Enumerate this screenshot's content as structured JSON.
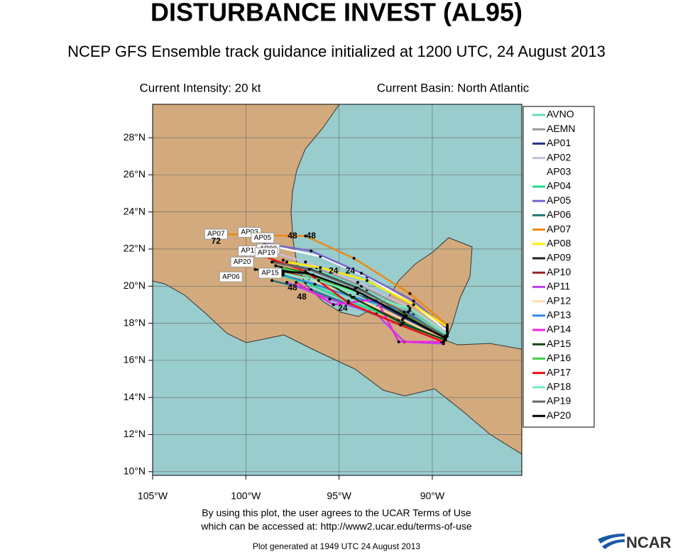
{
  "title": "DISTURBANCE INVEST (AL95)",
  "subtitle": "NCEP GFS Ensemble track guidance initialized at 1200 UTC, 24 August 2013",
  "intensity": "Current Intensity: 20 kt",
  "basin": "Current Basin: North Atlantic",
  "terms_line1": "By using this plot, the user agrees to the UCAR Terms of Use",
  "terms_line2": "which can be accessed at: http://www2.ucar.edu/terms-of-use",
  "generated": "Plot generated at 1949 UTC   24 August 2013",
  "logo": "NCAR",
  "chart_data": {
    "type": "track",
    "xlim": [
      -105,
      -85.2
    ],
    "ylim": [
      9.8,
      29.8
    ],
    "grid": true,
    "xticks": [
      {
        "value": -105,
        "label": "105°W"
      },
      {
        "value": -100,
        "label": "100°W"
      },
      {
        "value": -95,
        "label": "95°W"
      },
      {
        "value": -90,
        "label": "90°W"
      }
    ],
    "yticks": [
      {
        "value": 10,
        "label": "10°N"
      },
      {
        "value": 12,
        "label": "12°N"
      },
      {
        "value": 14,
        "label": "14°N"
      },
      {
        "value": 16,
        "label": "16°N"
      },
      {
        "value": 18,
        "label": "18°N"
      },
      {
        "value": 20,
        "label": "20°N"
      },
      {
        "value": 22,
        "label": "22°N"
      },
      {
        "value": 24,
        "label": "24°N"
      },
      {
        "value": 26,
        "label": "26°N"
      },
      {
        "value": 28,
        "label": "28°N"
      }
    ],
    "series": [
      {
        "name": "AVNO",
        "color": "#66ddbb",
        "x": [
          -89.2,
          -91,
          -93.5,
          -96,
          -98
        ],
        "values": [
          17.3,
          18.5,
          19.8,
          20.8,
          21.2
        ]
      },
      {
        "name": "AEMN",
        "color": "#999999",
        "x": [
          -89.2,
          -91.2,
          -93.8,
          -96.2,
          -98
        ],
        "values": [
          17.4,
          18.7,
          20,
          21,
          21.4
        ]
      },
      {
        "name": "AP01",
        "color": "#223388",
        "x": [
          -89.3,
          -91.5,
          -94,
          -96.5,
          -98.3
        ],
        "values": [
          17.2,
          18.3,
          19.6,
          20.6,
          20.9
        ]
      },
      {
        "name": "AP02",
        "color": "#ccbbdd",
        "x": [
          -89.2,
          -91.3,
          -94,
          -96.8,
          -98.5
        ],
        "values": [
          17.5,
          18.9,
          20.2,
          21.3,
          21.8
        ]
      },
      {
        "name": "AP03",
        "color": "#ffffff",
        "x": [
          -89.2,
          -91,
          -93.5,
          -96,
          -98.8
        ],
        "values": [
          17.6,
          19,
          20.5,
          21.6,
          22.2
        ]
      },
      {
        "name": "AP04",
        "color": "#22dd88",
        "x": [
          -89.3,
          -91.8,
          -94.5,
          -96.8,
          -98.2
        ],
        "values": [
          17.1,
          18.2,
          19.2,
          20.2,
          20.6
        ]
      },
      {
        "name": "AP05",
        "color": "#7766cc",
        "x": [
          -89.2,
          -91,
          -93.8,
          -96.5,
          -99
        ],
        "values": [
          17.7,
          19.2,
          20.7,
          21.9,
          22.3
        ]
      },
      {
        "name": "AP06",
        "color": "#227777",
        "x": [
          -89.4,
          -91.6,
          -94.2,
          -96.5,
          -98.6
        ],
        "values": [
          17,
          17.9,
          18.9,
          19.8,
          20.3
        ]
      },
      {
        "name": "AP07",
        "color": "#ee8811",
        "x": [
          -89.2,
          -91.2,
          -94.2,
          -96.8,
          -101.5
        ],
        "values": [
          17.9,
          19.6,
          21.5,
          22.7,
          22.8
        ]
      },
      {
        "name": "AP08",
        "color": "#ffee00",
        "x": [
          -89.2,
          -91,
          -93.5,
          -96,
          -97.8
        ],
        "values": [
          17.8,
          19,
          20.3,
          21,
          21.3
        ]
      },
      {
        "name": "AP09",
        "color": "#222222",
        "x": [
          -89.3,
          -91.4,
          -94,
          -96.5,
          -98.5
        ],
        "values": [
          17.3,
          18.5,
          19.9,
          20.9,
          21.3
        ]
      },
      {
        "name": "AP10",
        "color": "#992222",
        "x": [
          -89.3,
          -91.5,
          -94,
          -96.2,
          -98
        ],
        "values": [
          17.2,
          18.1,
          19.3,
          20.3,
          20.8
        ]
      },
      {
        "name": "AP11",
        "color": "#bb44ee",
        "x": [
          -89.4,
          -91.5,
          -93,
          -95.5,
          -97.8
        ],
        "values": [
          16.9,
          17,
          18.5,
          19.3,
          20.2
        ]
      },
      {
        "name": "AP12",
        "color": "#ffddaa",
        "x": [
          -89.3,
          -91.6,
          -94.4,
          -96.6,
          -98.8
        ],
        "values": [
          17.1,
          18.2,
          19.5,
          20.4,
          20.8
        ]
      },
      {
        "name": "AP13",
        "color": "#3388dd",
        "x": [
          -89.3,
          -91.3,
          -94.2,
          -96.3,
          -98
        ],
        "values": [
          17.2,
          18.6,
          19.4,
          20.1,
          20.6
        ]
      },
      {
        "name": "AP14",
        "color": "#ee22dd",
        "x": [
          -89.5,
          -91.8,
          -93,
          -95.3,
          -97.3
        ],
        "values": [
          17,
          17,
          19.3,
          19,
          20.2
        ]
      },
      {
        "name": "AP15",
        "color": "#114411",
        "x": [
          -89.3,
          -91.6,
          -94.3,
          -96.4,
          -98.4
        ],
        "values": [
          17.1,
          18,
          19.4,
          20.6,
          21.1
        ]
      },
      {
        "name": "AP16",
        "color": "#44cc44",
        "x": [
          -89.3,
          -91.4,
          -94.1,
          -96.3,
          -98.1
        ],
        "values": [
          17.3,
          18.4,
          19.7,
          20.5,
          21
        ]
      },
      {
        "name": "AP17",
        "color": "#ee1111",
        "x": [
          -89.4,
          -91.7,
          -94.5,
          -96.8,
          -99
        ],
        "values": [
          17,
          17.9,
          19.1,
          20.8,
          21.6
        ]
      },
      {
        "name": "AP18",
        "color": "#77eebb",
        "x": [
          -89.2,
          -91.2,
          -94,
          -96.1,
          -98
        ],
        "values": [
          17.4,
          18.8,
          19.6,
          20.3,
          20.7
        ]
      },
      {
        "name": "AP19",
        "color": "#666666",
        "x": [
          -89.3,
          -91.5,
          -94.1,
          -96.6,
          -98.6
        ],
        "values": [
          17.3,
          18.6,
          19.9,
          20.9,
          21.3
        ]
      },
      {
        "name": "AP20",
        "color": "#000000",
        "x": [
          -89.3,
          -91.5,
          -94.2,
          -96.7,
          -99.5
        ],
        "values": [
          17.2,
          18.4,
          19.8,
          20.7,
          20.9
        ]
      }
    ],
    "annotations": [
      {
        "text": "AP07",
        "x": -101.6,
        "y": 22.8,
        "box": true
      },
      {
        "text": "AP03",
        "x": -99.8,
        "y": 22.9,
        "box": true
      },
      {
        "text": "AP05",
        "x": -99.1,
        "y": 22.6,
        "box": true
      },
      {
        "text": "AP17",
        "x": -99.8,
        "y": 21.9,
        "box": true
      },
      {
        "text": "AP09",
        "x": -98.8,
        "y": 22,
        "box": true
      },
      {
        "text": "AP19",
        "x": -98.9,
        "y": 21.8,
        "box": true
      },
      {
        "text": "AP20",
        "x": -100.2,
        "y": 21.3,
        "box": true
      },
      {
        "text": "AP06",
        "x": -100.8,
        "y": 20.5,
        "box": true
      },
      {
        "text": "AP15",
        "x": -98.7,
        "y": 20.7,
        "box": true
      },
      {
        "text": "72",
        "x": -101.6,
        "y": 22.4,
        "box": false
      },
      {
        "text": "48",
        "x": -97.5,
        "y": 22.7,
        "box": false
      },
      {
        "text": "48",
        "x": -96.5,
        "y": 22.7,
        "box": false
      },
      {
        "text": "24",
        "x": -95.3,
        "y": 20.8,
        "box": false
      },
      {
        "text": "24",
        "x": -94.4,
        "y": 20.8,
        "box": false
      },
      {
        "text": "48",
        "x": -97.5,
        "y": 19.9,
        "box": false
      },
      {
        "text": "48",
        "x": -97,
        "y": 19.4,
        "box": false
      },
      {
        "text": "24",
        "x": -94.8,
        "y": 18.8,
        "box": false
      }
    ]
  }
}
